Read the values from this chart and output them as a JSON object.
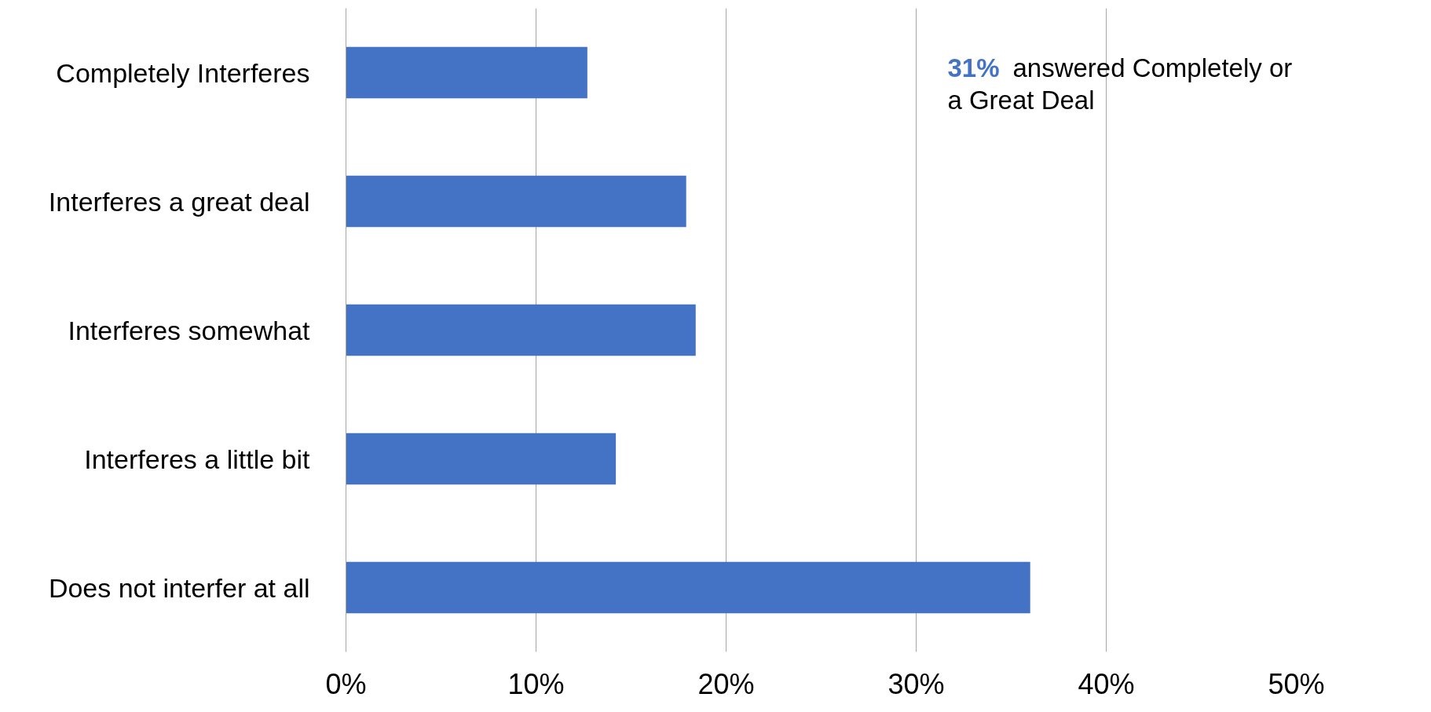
{
  "chart_data": {
    "type": "bar",
    "orientation": "horizontal",
    "categories": [
      "Completely Interferes",
      "Interferes a great deal",
      "Interferes somewhat",
      "Interferes a little bit",
      "Does not interfer at all"
    ],
    "values": [
      12.7,
      17.9,
      18.4,
      14.2,
      36.0
    ],
    "color": "#4472c4",
    "xlim": [
      0,
      50
    ],
    "xticks": [
      {
        "value": 0,
        "label": "0%"
      },
      {
        "value": 10,
        "label": "10%"
      },
      {
        "value": 20,
        "label": "20%"
      },
      {
        "value": 30,
        "label": "30%"
      },
      {
        "value": 40,
        "label": "40%"
      },
      {
        "value": 50,
        "label": "50%"
      }
    ],
    "grid": "x",
    "annotations": [
      "31% answered Completely or a Great Deal"
    ]
  }
}
